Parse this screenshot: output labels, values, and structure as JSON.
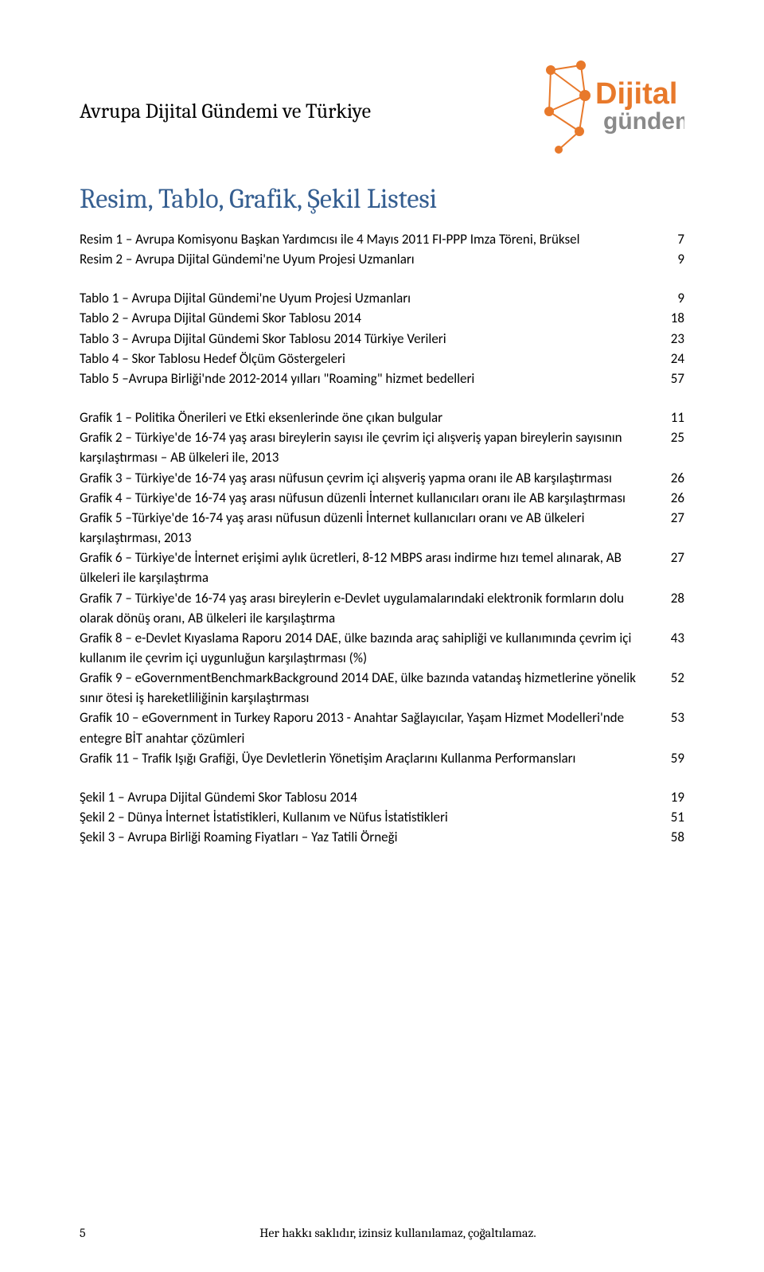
{
  "docTitle": "Avrupa Dijital Gündemi ve Türkiye",
  "sectionTitle": "Resim, Tablo, Grafik, Şekil Listesi",
  "logo": {
    "wordTop": "Dijital",
    "wordBottom": "gündem",
    "colorOrange": "#e8792b",
    "colorGrey": "#8a8a8a"
  },
  "groups": [
    {
      "entries": [
        {
          "text": "Resim 1 – Avrupa Komisyonu Başkan Yardımcısı ile 4 Mayıs 2011 FI-PPP Imza Töreni, Brüksel",
          "page": "7"
        },
        {
          "text": "Resim 2 – Avrupa Dijital Gündemi'ne Uyum Projesi Uzmanları",
          "page": "9"
        }
      ]
    },
    {
      "entries": [
        {
          "text": "Tablo 1 – Avrupa Dijital Gündemi'ne Uyum Projesi Uzmanları",
          "page": "9"
        },
        {
          "text": "Tablo 2 – Avrupa Dijital Gündemi Skor Tablosu 2014",
          "page": "18"
        },
        {
          "text": "Tablo 3 – Avrupa Dijital Gündemi Skor Tablosu 2014 Türkiye Verileri",
          "page": "23"
        },
        {
          "text": "Tablo 4 – Skor Tablosu Hedef Ölçüm Göstergeleri",
          "page": "24"
        },
        {
          "text": "Tablo 5 –Avrupa Birliği'nde 2012-2014 yılları \"Roaming\" hizmet bedelleri",
          "page": "57"
        }
      ]
    },
    {
      "entries": [
        {
          "text": "Grafik 1 – Politika Önerileri ve Etki eksenlerinde öne çıkan bulgular",
          "page": "11"
        },
        {
          "text": "Grafik 2 – Türkiye'de 16-74 yaş arası bireylerin sayısı ile çevrim içi alışveriş yapan bireylerin sayısının karşılaştırması – AB ülkeleri ile, 2013",
          "page": "25"
        },
        {
          "text": "Grafik 3 – Türkiye'de 16-74 yaş arası nüfusun çevrim içi alışveriş yapma oranı ile AB karşılaştırması",
          "page": "26"
        },
        {
          "text": "Grafik 4 – Türkiye'de 16-74 yaş arası nüfusun düzenli İnternet kullanıcıları oranı ile AB karşılaştırması",
          "page": "26"
        },
        {
          "text": "Grafik 5 –Türkiye'de 16-74 yaş arası nüfusun düzenli İnternet kullanıcıları oranı ve AB ülkeleri karşılaştırması, 2013",
          "page": "27"
        },
        {
          "text": "Grafik 6 – Türkiye'de İnternet erişimi aylık ücretleri, 8-12 MBPS arası indirme hızı temel alınarak, AB ülkeleri ile karşılaştırma",
          "page": "27"
        },
        {
          "text": "Grafik 7 – Türkiye'de 16-74 yaş arası bireylerin e-Devlet uygulamalarındaki elektronik formların dolu olarak dönüş oranı, AB ülkeleri ile karşılaştırma",
          "page": "28"
        },
        {
          "text": "Grafik 8 – e-Devlet Kıyaslama Raporu 2014 DAE, ülke bazında araç sahipliği ve kullanımında çevrim içi kullanım ile çevrim içi uygunluğun karşılaştırması (%)",
          "page": "43"
        },
        {
          "text": "Grafik 9 – eGovernmentBenchmarkBackground 2014 DAE, ülke bazında vatandaş hizmetlerine yönelik sınır ötesi iş hareketliliğinin karşılaştırması",
          "page": "52"
        },
        {
          "text": "Grafik 10 – eGovernment in Turkey Raporu 2013 - Anahtar Sağlayıcılar, Yaşam Hizmet Modelleri'nde entegre BİT anahtar çözümleri",
          "page": "53"
        },
        {
          "text": "Grafik 11 – Trafik Işığı Grafiği, Üye Devletlerin Yönetişim Araçlarını Kullanma Performansları",
          "page": "59"
        }
      ]
    },
    {
      "entries": [
        {
          "text": "Şekil 1 – Avrupa Dijital Gündemi Skor Tablosu 2014",
          "page": "19"
        },
        {
          "text": "Şekil 2 – Dünya İnternet İstatistikleri, Kullanım ve Nüfus İstatistikleri",
          "page": "51"
        },
        {
          "text": "Şekil 3 – Avrupa Birliği Roaming Fiyatları – Yaz Tatili Örneği",
          "page": "58"
        }
      ]
    }
  ],
  "footer": {
    "pageNumber": "5",
    "text": "Her hakkı saklıdır, izinsiz kullanılamaz, çoğaltılamaz."
  }
}
